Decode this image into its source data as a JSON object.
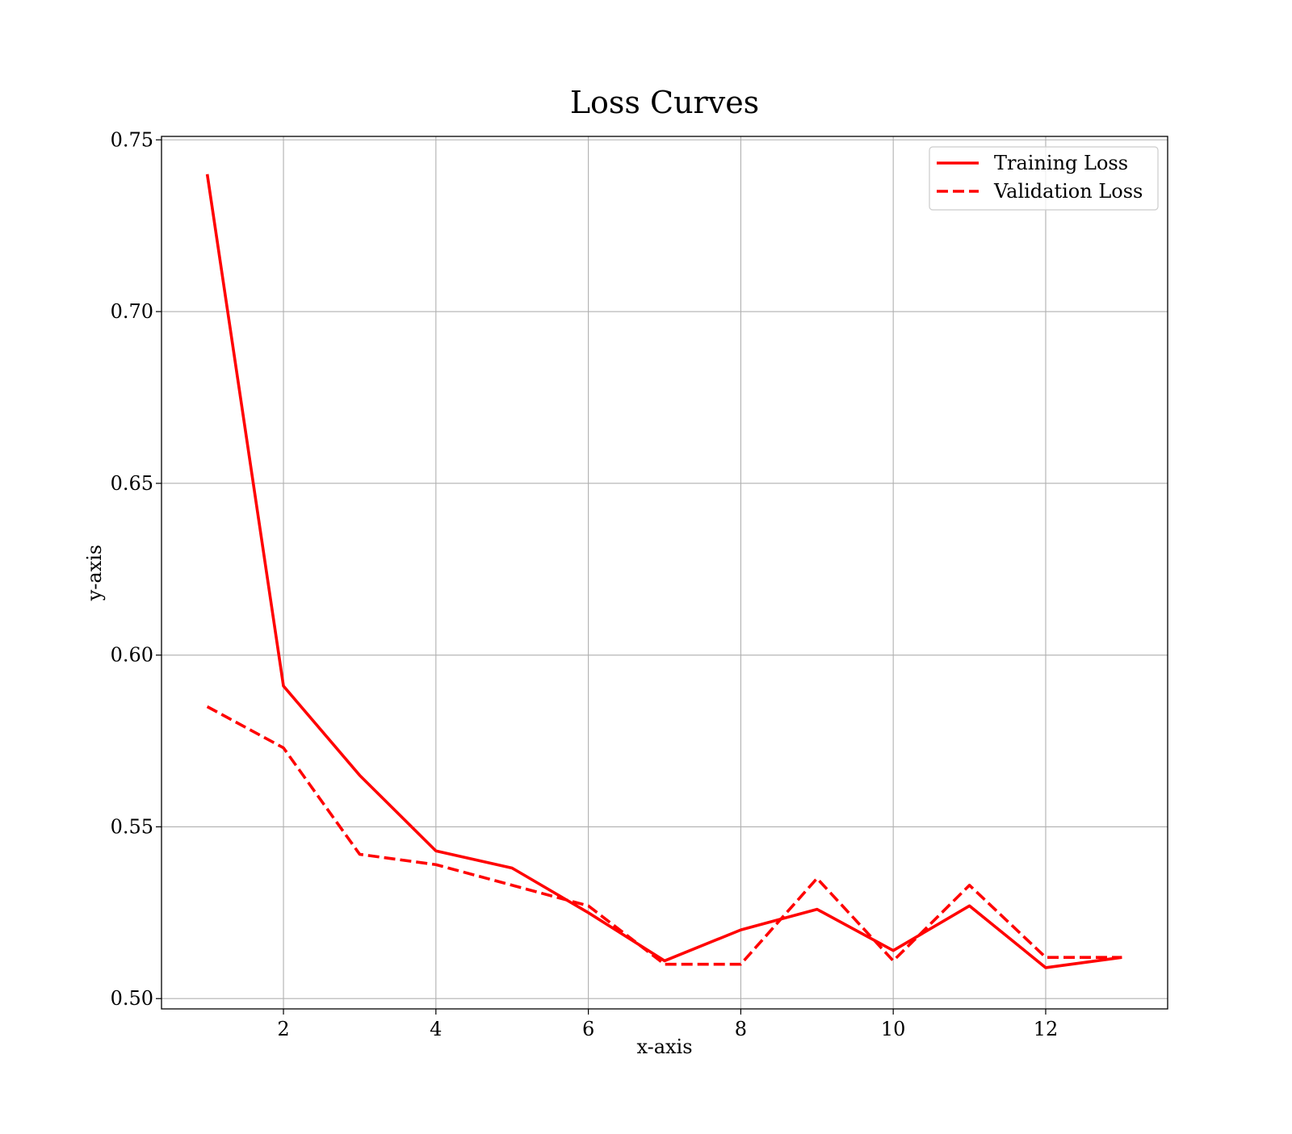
{
  "chart_data": {
    "type": "line",
    "title": "Loss Curves",
    "xlabel": "x-axis",
    "ylabel": "y-axis",
    "xlim": [
      0.4,
      13.6
    ],
    "ylim": [
      0.497,
      0.751
    ],
    "xticks": [
      2,
      4,
      6,
      8,
      10,
      12
    ],
    "xtick_labels": [
      "2",
      "4",
      "6",
      "8",
      "10",
      "12"
    ],
    "yticks": [
      0.5,
      0.55,
      0.6,
      0.65,
      0.7,
      0.75
    ],
    "ytick_labels": [
      "0.50",
      "0.55",
      "0.60",
      "0.65",
      "0.70",
      "0.75"
    ],
    "grid": true,
    "legend_position": "top-right",
    "x": [
      1,
      2,
      3,
      4,
      5,
      6,
      7,
      8,
      9,
      10,
      11,
      12,
      13
    ],
    "series": [
      {
        "name": "Training Loss",
        "style": "solid",
        "color": "#ff0000",
        "values": [
          0.74,
          0.591,
          0.565,
          0.543,
          0.538,
          0.525,
          0.511,
          0.52,
          0.526,
          0.514,
          0.527,
          0.509,
          0.512
        ]
      },
      {
        "name": "Validation Loss",
        "style": "dashed",
        "color": "#ff0000",
        "values": [
          0.585,
          0.573,
          0.542,
          0.539,
          0.533,
          0.527,
          0.51,
          0.51,
          0.535,
          0.511,
          0.533,
          0.512,
          0.512
        ]
      }
    ]
  }
}
